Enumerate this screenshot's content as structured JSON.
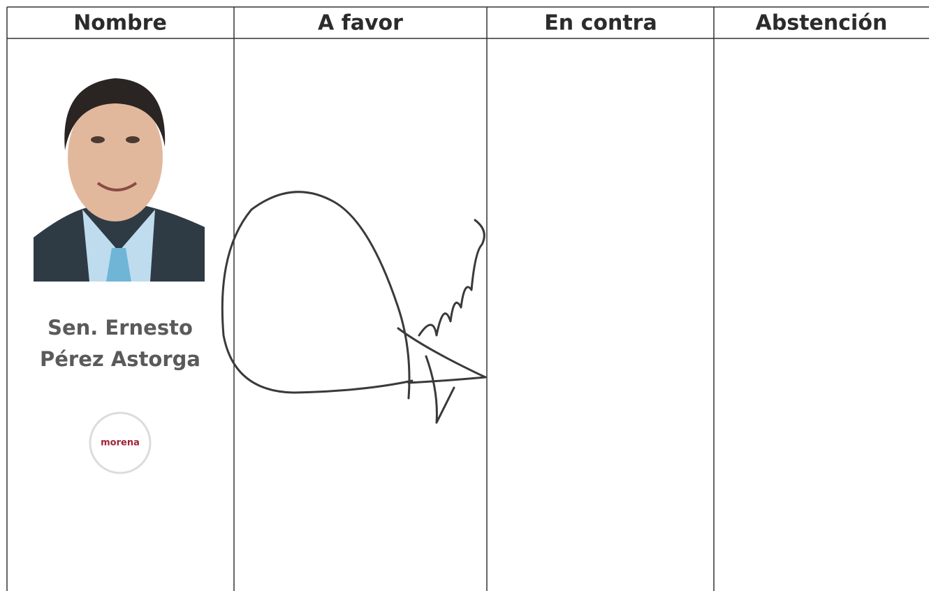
{
  "table": {
    "headers": [
      "Nombre",
      "A favor",
      "En contra",
      "Abstención"
    ],
    "rows": [
      {
        "name_lines": [
          "Sen. Ernesto",
          "Pérez Astorga"
        ],
        "party": "morena"
      }
    ]
  }
}
